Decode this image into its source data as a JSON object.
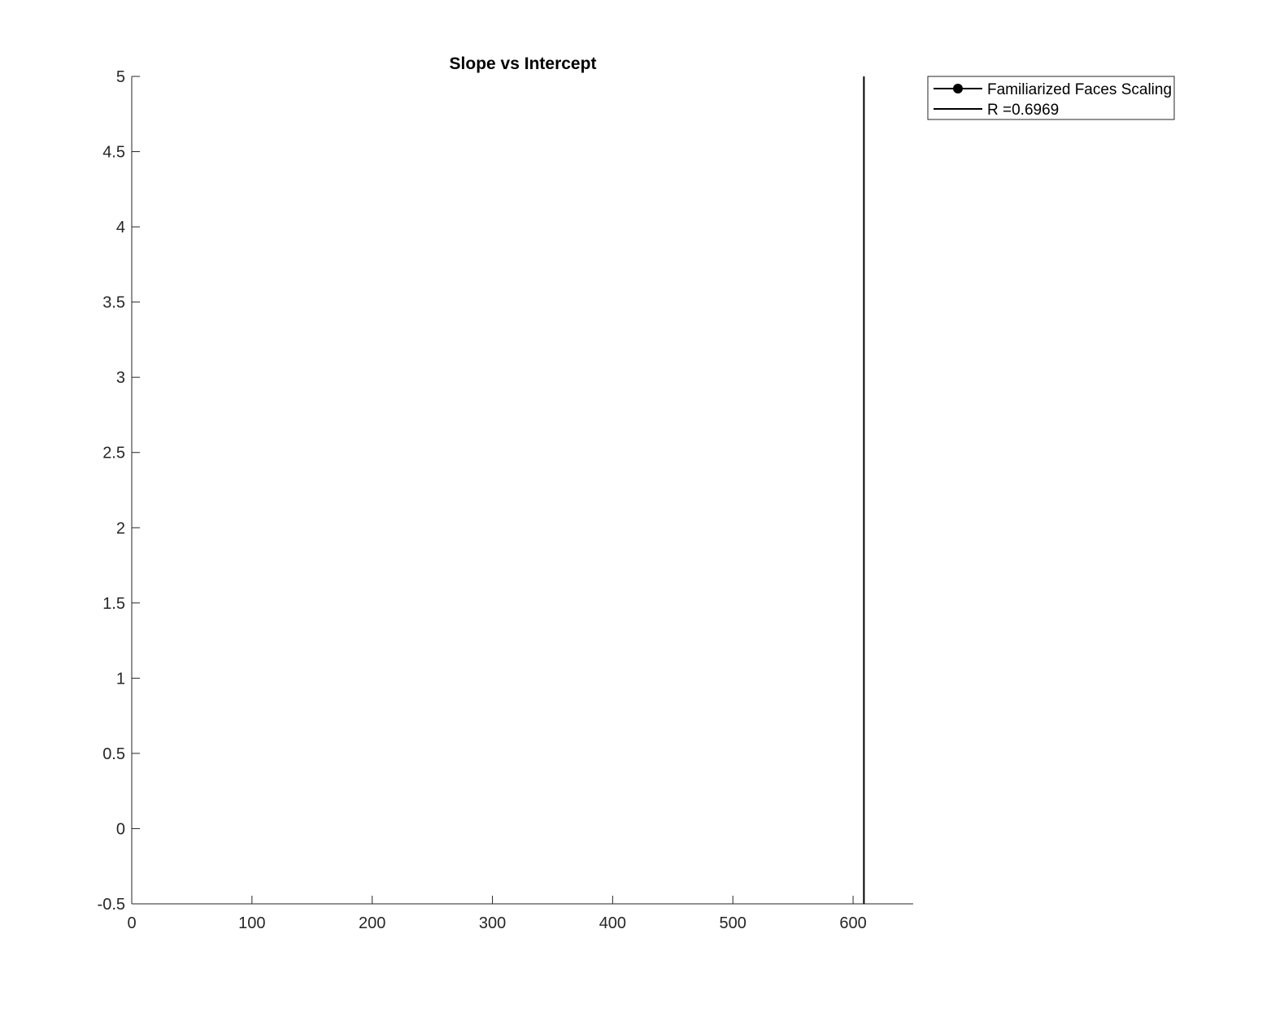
{
  "chart_data": {
    "type": "line",
    "title": "Slope vs Intercept",
    "xlabel": "",
    "ylabel": "",
    "xlim": [
      0,
      650
    ],
    "ylim": [
      -0.5,
      5
    ],
    "x_ticks": [
      0,
      100,
      200,
      300,
      400,
      500,
      600
    ],
    "y_ticks": [
      -0.5,
      0,
      0.5,
      1,
      1.5,
      2,
      2.5,
      3,
      3.5,
      4,
      4.5,
      5
    ],
    "x_tick_labels": [
      "0",
      "100",
      "200",
      "300",
      "400",
      "500",
      "600"
    ],
    "y_tick_labels": [
      "-0.5",
      "0",
      "0.5",
      "1",
      "1.5",
      "2",
      "2.5",
      "3",
      "3.5",
      "4",
      "4.5",
      "5"
    ],
    "grid": false,
    "legend_position": "outside-top-right",
    "series": [
      {
        "name": "Familiarized Faces Scaling",
        "marker": "filled-circle",
        "line": "solid",
        "color": "#000000",
        "points": []
      },
      {
        "name": "R =0.6969",
        "marker": "none",
        "line": "solid",
        "color": "#000000",
        "points": [
          {
            "x": 609,
            "y": -0.5
          },
          {
            "x": 609,
            "y": 5
          }
        ]
      }
    ]
  }
}
